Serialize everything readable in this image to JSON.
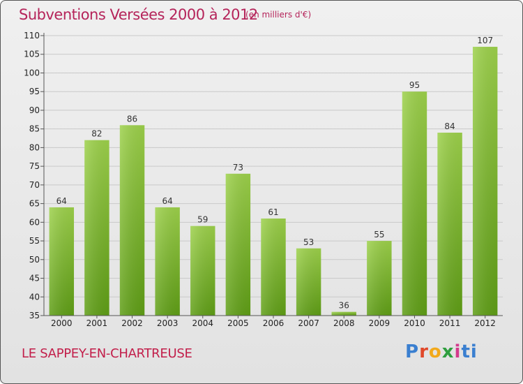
{
  "header": {
    "title": "Subventions Versées 2000 à 2012",
    "subtitle": "(en milliers d'€)"
  },
  "footer": {
    "place": "LE SAPPEY-EN-CHARTREUSE",
    "logo_text": "Proxiti"
  },
  "colors": {
    "title": "#b5245a",
    "place": "#c21e4a",
    "bar_top": "#9dd14b",
    "bar_bottom": "#5f9e16"
  },
  "chart_data": {
    "type": "bar",
    "title": "Subventions Versées 2000 à 2012",
    "subtitle": "(en milliers d'€)",
    "xlabel": "",
    "ylabel": "",
    "categories": [
      "2000",
      "2001",
      "2002",
      "2003",
      "2004",
      "2005",
      "2006",
      "2007",
      "2008",
      "2009",
      "2010",
      "2011",
      "2012"
    ],
    "values": [
      64,
      82,
      86,
      64,
      59,
      73,
      61,
      53,
      36,
      55,
      95,
      84,
      107
    ],
    "ylim": [
      35,
      110
    ],
    "yticks": [
      35,
      40,
      45,
      50,
      55,
      60,
      65,
      70,
      75,
      80,
      85,
      90,
      95,
      100,
      105,
      110
    ],
    "grid": true,
    "legend": "none"
  }
}
